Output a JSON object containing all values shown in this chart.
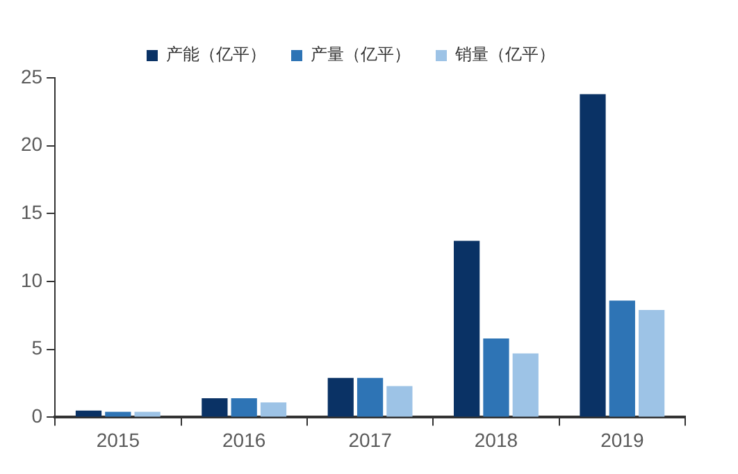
{
  "chart_data": {
    "type": "bar",
    "categories": [
      "2015",
      "2016",
      "2017",
      "2018",
      "2019"
    ],
    "series": [
      {
        "name": "产能（亿平）",
        "color": "#0a3265",
        "values": [
          0.5,
          1.4,
          2.9,
          13.0,
          23.8
        ]
      },
      {
        "name": "产量（亿平）",
        "color": "#2e74b5",
        "values": [
          0.4,
          1.4,
          2.9,
          5.8,
          8.6
        ]
      },
      {
        "name": "销量（亿平）",
        "color": "#9dc3e6",
        "values": [
          0.4,
          1.1,
          2.3,
          4.7,
          7.9
        ]
      }
    ],
    "ylim": [
      0,
      25
    ],
    "yticks": [
      0,
      5,
      10,
      15,
      20,
      25
    ],
    "grid": false,
    "legend": "top"
  }
}
